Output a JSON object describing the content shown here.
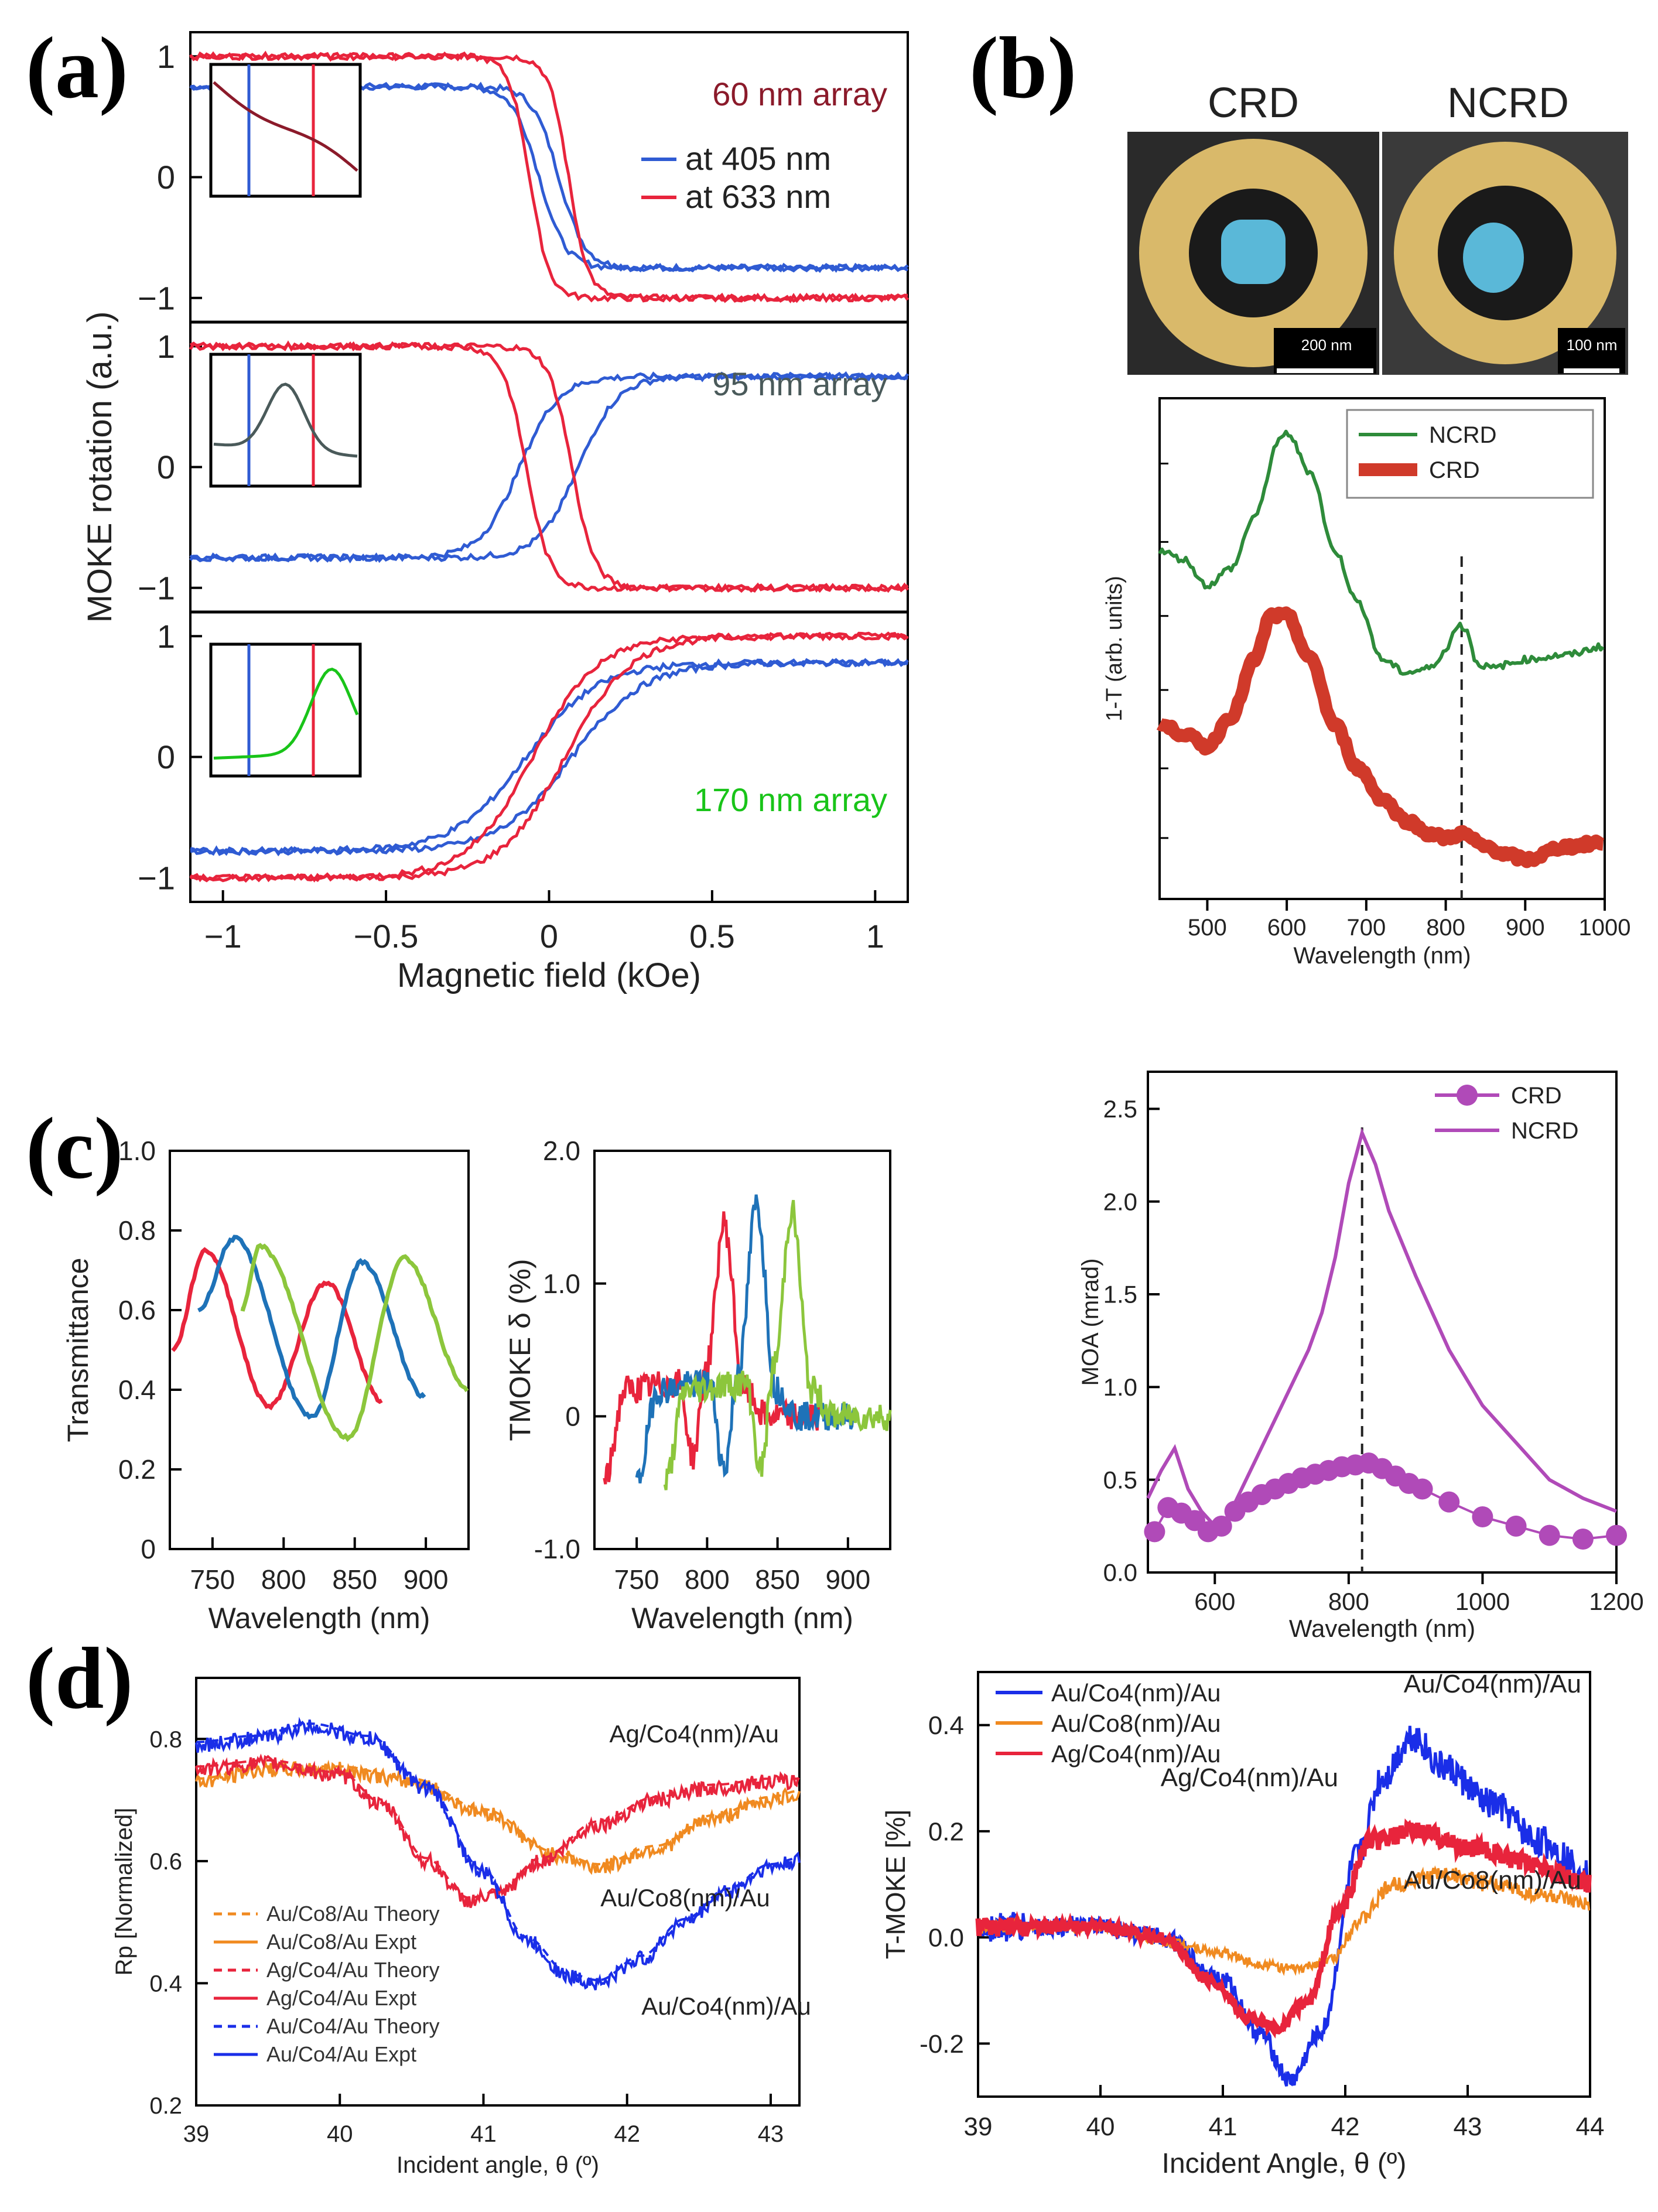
{
  "panel_labels": [
    "(a)",
    "(b)",
    "(c)",
    "(d)"
  ],
  "colors": {
    "blue": "#2f5bd3",
    "red": "#e8243c",
    "dark_red": "#8b1a2a",
    "green": "#2e8b3a",
    "bright_green": "#19c419",
    "gray": "#4a5a5a",
    "crd_red": "#d03a2a",
    "purple": "#b04ab8",
    "orange": "#f08a20",
    "c_blue": "#1e72b8",
    "c_green": "#8cc63c",
    "pure_blue": "#1a2ee8",
    "gold": "#d9b96a",
    "cyan": "#5ab8d8"
  },
  "icons": [
    "scale-bar-icon"
  ],
  "b_images": {
    "crd_title": "CRD",
    "ncrd_title": "NCRD",
    "crd_scale": "200 nm",
    "ncrd_scale": "100 nm"
  },
  "chart_data": [
    {
      "id": "a",
      "type": "line",
      "title": "",
      "xlabel": "Magnetic field (kOe)",
      "ylabel": "MOKE rotation (a.u.)",
      "xlim": [
        -1.1,
        1.1
      ],
      "xticks": [
        -1,
        -0.5,
        0,
        0.5,
        1
      ],
      "xtick_labels": [
        "−1",
        "−0.5",
        "0",
        "0.5",
        "1"
      ],
      "subplots": [
        {
          "label": "60 nm array",
          "label_color": "#8b1a2a",
          "ylim": [
            -1.2,
            1.2
          ],
          "yticks": [
            -1,
            0,
            1
          ],
          "ytick_labels": [
            "−1",
            "0",
            "1"
          ],
          "legend": [
            "at 405 nm",
            "at 633 nm"
          ],
          "series": [
            {
              "name": "at 405 nm",
              "color": "#2f5bd3",
              "saturation": 0.75,
              "coercivity": 0.03,
              "width": 0.08,
              "reversed": true
            },
            {
              "name": "at 633 nm",
              "color": "#e8243c",
              "saturation": 1.0,
              "coercivity": 0.06,
              "width": 0.06,
              "reversed": true
            }
          ]
        },
        {
          "label": "95 nm array",
          "label_color": "#4a5a5a",
          "ylim": [
            -1.2,
            1.2
          ],
          "yticks": [
            -1,
            0,
            1
          ],
          "ytick_labels": [
            "−1",
            "0",
            "1"
          ],
          "series": [
            {
              "name": "at 405 nm",
              "color": "#2f5bd3",
              "saturation": 0.75,
              "coercivity": 0.09,
              "width": 0.12,
              "reversed": false
            },
            {
              "name": "at 633 nm",
              "color": "#e8243c",
              "saturation": 1.0,
              "coercivity": 0.07,
              "width": 0.07,
              "reversed": true
            }
          ]
        },
        {
          "label": "170 nm array",
          "label_color": "#19c419",
          "ylim": [
            -1.2,
            1.2
          ],
          "yticks": [
            -1,
            0,
            1
          ],
          "ytick_labels": [
            "−1",
            "0",
            "1"
          ],
          "series": [
            {
              "name": "at 405 nm",
              "color": "#2f5bd3",
              "saturation": 0.78,
              "coercivity": 0.07,
              "width": 0.22,
              "reversed": false
            },
            {
              "name": "at 633 nm",
              "color": "#e8243c",
              "saturation": 1.0,
              "coercivity": 0.05,
              "width": 0.2,
              "reversed": false
            }
          ]
        }
      ]
    },
    {
      "id": "b1",
      "type": "line",
      "xlabel": "Wavelength (nm)",
      "ylabel": "1-T (arb. units)",
      "xlim": [
        440,
        1000
      ],
      "xticks": [
        500,
        600,
        700,
        800,
        900,
        1000
      ],
      "legend": [
        "NCRD",
        "CRD"
      ],
      "vline_x": 820,
      "series": [
        {
          "name": "NCRD",
          "x": [
            440,
            470,
            500,
            530,
            560,
            590,
            600,
            630,
            660,
            690,
            720,
            750,
            780,
            800,
            815,
            825,
            840,
            860,
            880,
            900,
            950,
            1000
          ],
          "y": [
            0.7,
            0.68,
            0.62,
            0.66,
            0.78,
            0.95,
            0.97,
            0.88,
            0.7,
            0.58,
            0.45,
            0.42,
            0.43,
            0.47,
            0.53,
            0.52,
            0.44,
            0.43,
            0.44,
            0.45,
            0.46,
            0.48
          ]
        },
        {
          "name": "CRD",
          "x": [
            440,
            470,
            500,
            530,
            560,
            580,
            600,
            630,
            660,
            690,
            720,
            750,
            780,
            800,
            820,
            850,
            880,
            900,
            950,
            1000
          ],
          "y": [
            0.3,
            0.28,
            0.25,
            0.32,
            0.45,
            0.55,
            0.55,
            0.45,
            0.3,
            0.2,
            0.13,
            0.08,
            0.05,
            0.04,
            0.05,
            0.02,
            0.0,
            -0.01,
            0.02,
            0.03
          ]
        }
      ]
    },
    {
      "id": "b2",
      "type": "line",
      "xlabel": "Wavelength (nm)",
      "ylabel": "MOA (mrad)",
      "xlim": [
        500,
        1200
      ],
      "ylim": [
        0,
        2.7
      ],
      "xticks": [
        600,
        800,
        1000,
        1200
      ],
      "yticks": [
        0.0,
        0.5,
        1.0,
        1.5,
        2.0,
        2.5
      ],
      "ytick_labels": [
        "0.0",
        "0.5",
        "1.0",
        "1.5",
        "2.0",
        "2.5"
      ],
      "legend": [
        "CRD",
        "NCRD"
      ],
      "vline_x": 820,
      "series": [
        {
          "name": "CRD",
          "marker": "circle",
          "x": [
            510,
            530,
            550,
            570,
            590,
            610,
            630,
            650,
            670,
            690,
            710,
            730,
            750,
            770,
            790,
            810,
            830,
            850,
            870,
            890,
            910,
            950,
            1000,
            1050,
            1100,
            1150,
            1200
          ],
          "y": [
            0.22,
            0.35,
            0.32,
            0.28,
            0.22,
            0.25,
            0.33,
            0.38,
            0.42,
            0.45,
            0.48,
            0.51,
            0.53,
            0.55,
            0.57,
            0.58,
            0.59,
            0.56,
            0.52,
            0.48,
            0.45,
            0.38,
            0.3,
            0.25,
            0.2,
            0.18,
            0.2
          ]
        },
        {
          "name": "NCRD",
          "x": [
            500,
            520,
            540,
            560,
            580,
            600,
            620,
            640,
            660,
            680,
            700,
            720,
            740,
            760,
            780,
            800,
            820,
            840,
            860,
            900,
            950,
            1000,
            1050,
            1100,
            1150,
            1200
          ],
          "y": [
            0.4,
            0.55,
            0.67,
            0.45,
            0.33,
            0.25,
            0.3,
            0.45,
            0.6,
            0.75,
            0.9,
            1.05,
            1.2,
            1.4,
            1.7,
            2.1,
            2.37,
            2.2,
            1.95,
            1.6,
            1.2,
            0.9,
            0.7,
            0.5,
            0.4,
            0.33
          ]
        }
      ]
    },
    {
      "id": "c1",
      "type": "line",
      "xlabel": "Wavelength (nm)",
      "ylabel": "Transmittance",
      "xlim": [
        720,
        930
      ],
      "ylim": [
        0,
        1.0
      ],
      "xticks": [
        750,
        800,
        850,
        900
      ],
      "yticks": [
        0,
        0.2,
        0.4,
        0.6,
        0.8,
        1.0
      ],
      "ytick_labels": [
        "0",
        "0.2",
        "0.4",
        "0.6",
        "0.8",
        "1.0"
      ],
      "series": [
        {
          "name": "red",
          "color": "#e8243c",
          "x0": 722,
          "x1": 880,
          "peaks": [
            [
              745,
              0.75
            ],
            [
              830,
              0.67
            ]
          ],
          "troughs": [
            [
              790,
              0.36
            ],
            [
              870,
              0.37
            ]
          ]
        },
        {
          "name": "blue",
          "color": "#1e72b8",
          "x0": 740,
          "x1": 905,
          "peaks": [
            [
              765,
              0.78
            ],
            [
              855,
              0.72
            ]
          ],
          "troughs": [
            [
              820,
              0.33
            ],
            [
              900,
              0.38
            ]
          ]
        },
        {
          "name": "green",
          "color": "#8cc63c",
          "x0": 770,
          "x1": 930,
          "peaks": [
            [
              783,
              0.76
            ],
            [
              885,
              0.73
            ]
          ],
          "troughs": [
            [
              845,
              0.28
            ],
            [
              930,
              0.4
            ]
          ]
        }
      ]
    },
    {
      "id": "c2",
      "type": "line",
      "xlabel": "Wavelength (nm)",
      "ylabel": "TMOKE δ  (%)",
      "xlim": [
        720,
        930
      ],
      "ylim": [
        -1.0,
        2.0
      ],
      "xticks": [
        750,
        800,
        850,
        900
      ],
      "yticks": [
        -1.0,
        0,
        1.0,
        2.0
      ],
      "ytick_labels": [
        "-1.0",
        "0",
        "1.0",
        "2.0"
      ],
      "series": [
        {
          "name": "red",
          "color": "#e8243c",
          "x0": 727,
          "x1": 880,
          "peak_x": 812,
          "peak_y": 1.45,
          "dip_x": 790,
          "dip_y": -0.3
        },
        {
          "name": "blue",
          "color": "#1e72b8",
          "x0": 750,
          "x1": 905,
          "peak_x": 835,
          "peak_y": 1.6,
          "dip_x": 812,
          "dip_y": -0.4
        },
        {
          "name": "green",
          "color": "#8cc63c",
          "x0": 770,
          "x1": 930,
          "peak_x": 860,
          "peak_y": 1.55,
          "dip_x": 838,
          "dip_y": -0.4
        }
      ]
    },
    {
      "id": "d1",
      "type": "line",
      "xlabel": "Incident angle, θ (º)",
      "ylabel": "Rp [Normalized]",
      "xlim": [
        39,
        43.2
      ],
      "ylim": [
        0.2,
        0.9
      ],
      "xticks": [
        39,
        40,
        41,
        42,
        43
      ],
      "yticks": [
        0.2,
        0.4,
        0.6,
        0.8
      ],
      "ytick_labels": [
        "0.2",
        "0.4",
        "0.6",
        "0.8"
      ],
      "legend": [
        "Au/Co8/Au Theory",
        "Au/Co8/Au Expt",
        "Ag/Co4/Au Theory",
        "Ag/Co4/Au Expt",
        "Au/Co4/Au Theory",
        "Au/Co4/Au Expt"
      ],
      "annotations": [
        "Ag/Co4(nm)/Au",
        "Au/Co8(nm)/Au",
        "Au/Co4(nm)/Au"
      ],
      "series": [
        {
          "name": "Au/Co8/Au",
          "color": "#f08a20",
          "x": [
            39,
            39.5,
            40,
            40.5,
            41,
            41.5,
            41.8,
            42.2,
            42.6,
            43,
            43.2
          ],
          "y": [
            0.73,
            0.75,
            0.75,
            0.73,
            0.68,
            0.61,
            0.59,
            0.62,
            0.67,
            0.7,
            0.71
          ]
        },
        {
          "name": "Ag/Co4/Au",
          "color": "#e8243c",
          "x": [
            39,
            39.5,
            40,
            40.3,
            40.6,
            40.9,
            41.1,
            41.4,
            41.8,
            42.2,
            42.6,
            43,
            43.2
          ],
          "y": [
            0.75,
            0.76,
            0.74,
            0.69,
            0.6,
            0.535,
            0.545,
            0.6,
            0.66,
            0.7,
            0.72,
            0.73,
            0.73
          ]
        },
        {
          "name": "Au/Co4/Au",
          "color": "#1a2ee8",
          "x": [
            39,
            39.4,
            39.8,
            40.2,
            40.6,
            41,
            41.3,
            41.6,
            41.8,
            42.1,
            42.4,
            42.7,
            43,
            43.2
          ],
          "y": [
            0.79,
            0.8,
            0.82,
            0.8,
            0.72,
            0.58,
            0.47,
            0.41,
            0.4,
            0.44,
            0.5,
            0.55,
            0.59,
            0.6
          ]
        }
      ]
    },
    {
      "id": "d2",
      "type": "line",
      "xlabel": "Incident Angle, θ (º)",
      "ylabel": "T-MOKE [%]",
      "xlim": [
        39,
        44
      ],
      "ylim": [
        -0.3,
        0.5
      ],
      "xticks": [
        39,
        40,
        41,
        42,
        43,
        44
      ],
      "yticks": [
        -0.2,
        0.0,
        0.2,
        0.4
      ],
      "ytick_labels": [
        "-0.2",
        "0.0",
        "0.2",
        "0.4"
      ],
      "legend": [
        "Au/Co4(nm)/Au",
        "Au/Co8(nm)/Au",
        "Ag/Co4(nm)/Au"
      ],
      "annotations": [
        "Au/Co4(nm)/Au",
        "Ag/Co4(nm)/Au",
        "Au/Co8(nm)/Au"
      ],
      "series": [
        {
          "name": "Au/Co4(nm)/Au",
          "color": "#1a2ee8",
          "x": [
            39,
            40,
            40.5,
            41,
            41.3,
            41.55,
            41.8,
            42.1,
            42.3,
            42.55,
            42.8,
            43.2,
            43.6,
            44
          ],
          "y": [
            0.02,
            0.02,
            0.0,
            -0.08,
            -0.18,
            -0.27,
            -0.18,
            0.15,
            0.3,
            0.38,
            0.32,
            0.25,
            0.18,
            0.12
          ]
        },
        {
          "name": "Au/Co8(nm)/Au",
          "color": "#f08a20",
          "x": [
            39,
            40,
            40.6,
            41,
            41.3,
            41.6,
            41.9,
            42.1,
            42.4,
            42.8,
            43.2,
            43.6,
            44
          ],
          "y": [
            0.02,
            0.02,
            -0.01,
            -0.03,
            -0.05,
            -0.06,
            -0.04,
            0.03,
            0.1,
            0.12,
            0.1,
            0.08,
            0.06
          ]
        },
        {
          "name": "Ag/Co4(nm)/Au",
          "color": "#e8243c",
          "x": [
            39,
            40,
            40.5,
            40.9,
            41.2,
            41.45,
            41.7,
            41.95,
            42.2,
            42.6,
            43,
            43.5,
            44
          ],
          "y": [
            0.02,
            0.02,
            0.0,
            -0.08,
            -0.15,
            -0.17,
            -0.12,
            0.05,
            0.18,
            0.2,
            0.17,
            0.14,
            0.1
          ]
        }
      ]
    }
  ]
}
